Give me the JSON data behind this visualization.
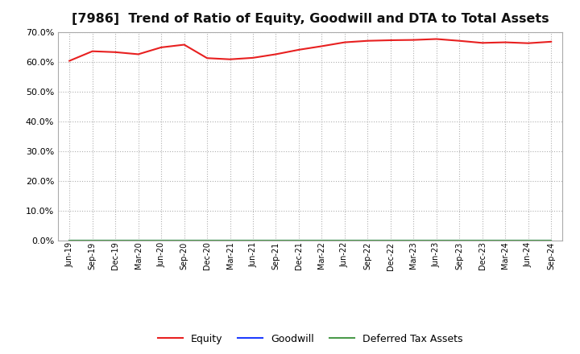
{
  "title": "[7986]  Trend of Ratio of Equity, Goodwill and DTA to Total Assets",
  "x_labels": [
    "Jun-19",
    "Sep-19",
    "Dec-19",
    "Mar-20",
    "Jun-20",
    "Sep-20",
    "Dec-20",
    "Mar-21",
    "Jun-21",
    "Sep-21",
    "Dec-21",
    "Mar-22",
    "Jun-22",
    "Sep-22",
    "Dec-22",
    "Mar-23",
    "Jun-23",
    "Sep-23",
    "Dec-23",
    "Mar-24",
    "Jun-24",
    "Sep-24"
  ],
  "equity": [
    60.3,
    63.5,
    63.2,
    62.5,
    64.8,
    65.7,
    61.2,
    60.8,
    61.3,
    62.5,
    64.0,
    65.2,
    66.5,
    67.0,
    67.2,
    67.3,
    67.6,
    67.0,
    66.3,
    66.5,
    66.2,
    66.7
  ],
  "goodwill": [
    0.0,
    0.0,
    0.0,
    0.0,
    0.0,
    0.0,
    0.0,
    0.0,
    0.0,
    0.0,
    0.0,
    0.0,
    0.0,
    0.0,
    0.0,
    0.0,
    0.0,
    0.0,
    0.0,
    0.0,
    0.0,
    0.0
  ],
  "dta": [
    0.0,
    0.0,
    0.0,
    0.0,
    0.0,
    0.0,
    0.0,
    0.0,
    0.0,
    0.0,
    0.0,
    0.0,
    0.0,
    0.0,
    0.0,
    0.0,
    0.0,
    0.0,
    0.0,
    0.0,
    0.0,
    0.0
  ],
  "equity_color": "#e82020",
  "goodwill_color": "#1e3cff",
  "dta_color": "#4a9a4a",
  "ylim": [
    0.0,
    70.0
  ],
  "yticks": [
    0.0,
    10.0,
    20.0,
    30.0,
    40.0,
    50.0,
    60.0,
    70.0
  ],
  "background_color": "#ffffff",
  "plot_bg_color": "#ffffff",
  "grid_color": "#b0b0b0",
  "title_fontsize": 11.5,
  "legend_labels": [
    "Equity",
    "Goodwill",
    "Deferred Tax Assets"
  ],
  "fig_width": 7.2,
  "fig_height": 4.4,
  "dpi": 100
}
